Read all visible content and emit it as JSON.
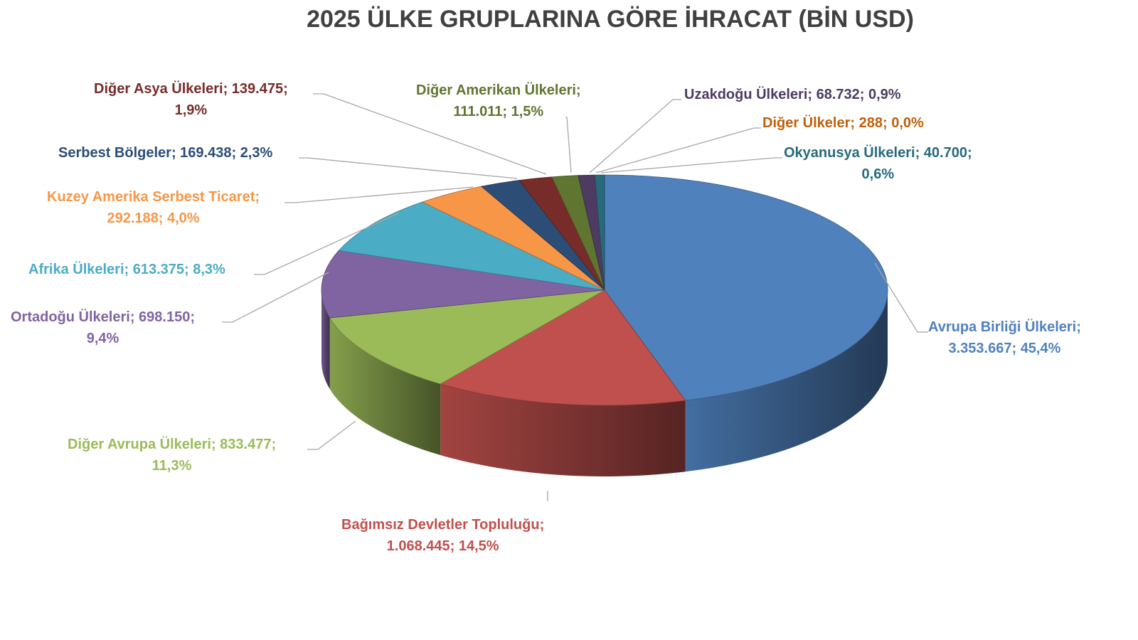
{
  "chart_data": {
    "type": "pie",
    "style": "3d",
    "title": "2025 ÜLKE GRUPLARINA GÖRE İHRACAT (BİN USD)",
    "slices": [
      {
        "name": "Avrupa Birliği Ülkeleri",
        "value": 3353667,
        "value_label": "3.353.667",
        "percent": "45,4%",
        "color": "#4f81bd",
        "label_color": "#4f81bd"
      },
      {
        "name": "Bağımsız Devletler Topluluğu",
        "value": 1068445,
        "value_label": "1.068.445",
        "percent": "14,5%",
        "color": "#c0504d",
        "label_color": "#c0504d"
      },
      {
        "name": "Diğer Avrupa Ülkeleri",
        "value": 833477,
        "value_label": "833.477",
        "percent": "11,3%",
        "color": "#9bbb59",
        "label_color": "#9bbb59"
      },
      {
        "name": "Ortadoğu Ülkeleri",
        "value": 698150,
        "value_label": "698.150",
        "percent": "9,4%",
        "color": "#8064a2",
        "label_color": "#8064a2"
      },
      {
        "name": "Afrika Ülkeleri",
        "value": 613375,
        "value_label": "613.375",
        "percent": "8,3%",
        "color": "#4bacc6",
        "label_color": "#4bacc6"
      },
      {
        "name": "Kuzey Amerika Serbest Ticaret",
        "value": 292188,
        "value_label": "292.188",
        "percent": "4,0%",
        "color": "#f79646",
        "label_color": "#f79646"
      },
      {
        "name": "Serbest Bölgeler",
        "value": 169438,
        "value_label": "169.438",
        "percent": "2,3%",
        "color": "#2c4d75",
        "label_color": "#2c4d75"
      },
      {
        "name": "Diğer Asya Ülkeleri",
        "value": 139475,
        "value_label": "139.475",
        "percent": "1,9%",
        "color": "#772c2a",
        "label_color": "#772c2a"
      },
      {
        "name": "Diğer Amerikan Ülkeleri",
        "value": 111011,
        "value_label": "111.011",
        "percent": "1,5%",
        "color": "#5f7530",
        "label_color": "#5f7530"
      },
      {
        "name": "Uzakdoğu Ülkeleri",
        "value": 68732,
        "value_label": "68.732",
        "percent": "0,9%",
        "color": "#4d3b62",
        "label_color": "#4d3b62"
      },
      {
        "name": "Diğer Ülkeler",
        "value": 288,
        "value_label": "288",
        "percent": "0,0%",
        "color": "#b65708",
        "label_color": "#c0600a"
      },
      {
        "name": "Okyanusya Ülkeleri",
        "value": 40700,
        "value_label": "40.700",
        "percent": "0,6%",
        "color": "#276a7c",
        "label_color": "#276a7c"
      }
    ],
    "legend": "none",
    "label_format": "name; value; percent"
  }
}
